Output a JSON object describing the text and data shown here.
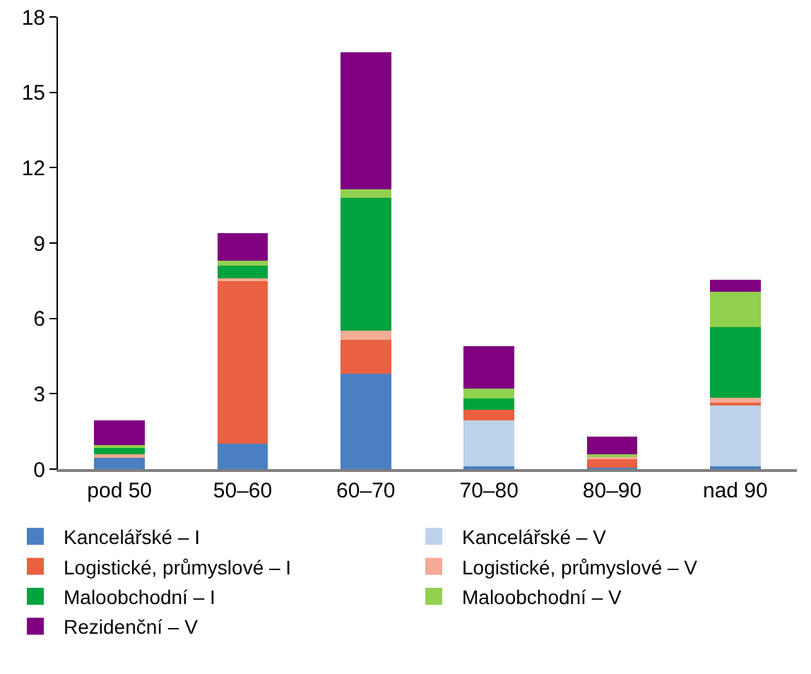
{
  "chart_data": {
    "type": "bar",
    "stacked": true,
    "categories": [
      "pod 50",
      "50–60",
      "60–70",
      "70–80",
      "80–90",
      "nad 90"
    ],
    "series": [
      {
        "name": "Kancelářské – I",
        "color": "#4a7fc1",
        "values": [
          0.5,
          1.0,
          3.8,
          0.1,
          0.05,
          0.1
        ]
      },
      {
        "name": "Kancelářské – V",
        "color": "#bcd3ea",
        "values": [
          0,
          0,
          0,
          1.85,
          0,
          2.45
        ]
      },
      {
        "name": "Logistické, průmyslové – I",
        "color": "#e96140",
        "values": [
          0,
          6.5,
          1.35,
          0.4,
          0.35,
          0.1
        ]
      },
      {
        "name": "Logistické, průmyslové – V",
        "color": "#f4ab96",
        "values": [
          0.1,
          0.1,
          0.35,
          0,
          0.08,
          0.2
        ]
      },
      {
        "name": "Maloobchodní – I",
        "color": "#00a33e",
        "values": [
          0.25,
          0.5,
          5.3,
          0.45,
          0,
          2.8
        ]
      },
      {
        "name": "Maloobchodní – V",
        "color": "#92d050",
        "values": [
          0.12,
          0.2,
          0.35,
          0.4,
          0.12,
          1.4
        ]
      },
      {
        "name": "Rezidenční – V",
        "color": "#800080",
        "values": [
          0.97,
          1.1,
          5.45,
          1.7,
          0.7,
          0.5
        ]
      }
    ],
    "ylim": [
      0,
      18
    ],
    "yticks": [
      0,
      3,
      6,
      9,
      12,
      15,
      18
    ],
    "grid": false,
    "legend": "bottom"
  }
}
